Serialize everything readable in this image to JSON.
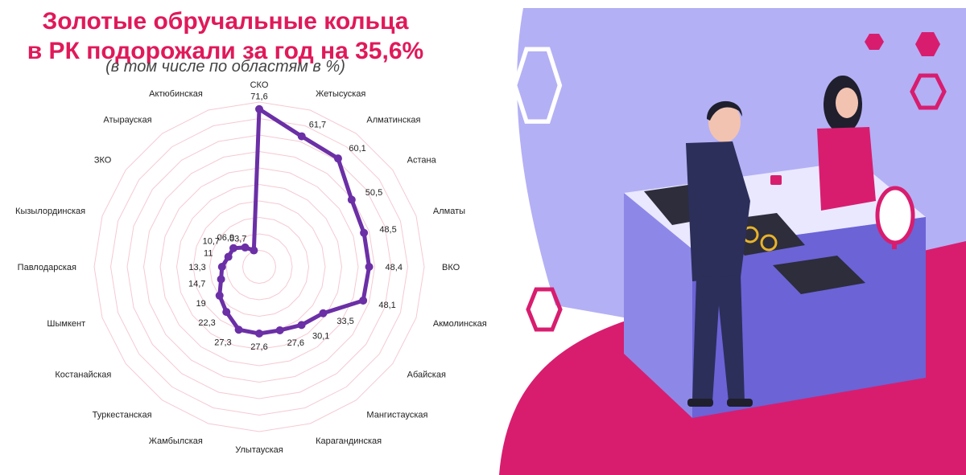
{
  "header": {
    "title_line1": "Золотые обручальные кольца",
    "title_line2": "в РК подорожали за год на 35,6%",
    "subtitle": "(в том числе по областям в %)"
  },
  "colors": {
    "title": "#e0195a",
    "series": "#6b2fa6",
    "grid": "#f6c9d3",
    "illustration_purple": "#b3b0f5",
    "illustration_pink": "#d81d6f"
  },
  "chart_data": {
    "type": "radar",
    "title": "Золотые обручальные кольца в РК подорожали за год на 35,6%",
    "subtitle": "(в том числе по областям в %)",
    "categories": [
      "СКО",
      "Жетысуская",
      "Алматинская",
      "Астана",
      "Алматы",
      "ВКО",
      "Акмолинская",
      "Абайская",
      "Мангистауская",
      "Карагандинская",
      "Улытауская",
      "Жамбылская",
      "Туркестанская",
      "Костанайская",
      "Шымкент",
      "Павлодарская",
      "Кызылординская",
      "ЗКО",
      "Атырауская",
      "Актюбинская"
    ],
    "value_labels": [
      "71,6",
      "61,7",
      "60,1",
      "50,5",
      "48,5",
      "48,4",
      "48,1",
      "33,5",
      "30,1",
      "27,6",
      "27,6",
      "27,3",
      "22,3",
      "19",
      "14,7",
      "13,3",
      "11",
      "10,7",
      "06,9",
      "03,7"
    ],
    "values": [
      71.6,
      61.7,
      60.1,
      50.5,
      48.5,
      48.4,
      48.1,
      33.5,
      30.1,
      27.6,
      27.6,
      27.3,
      22.3,
      19,
      14.7,
      13.3,
      11,
      10.7,
      6.9,
      3.7
    ],
    "grid": true,
    "legend": "none"
  }
}
